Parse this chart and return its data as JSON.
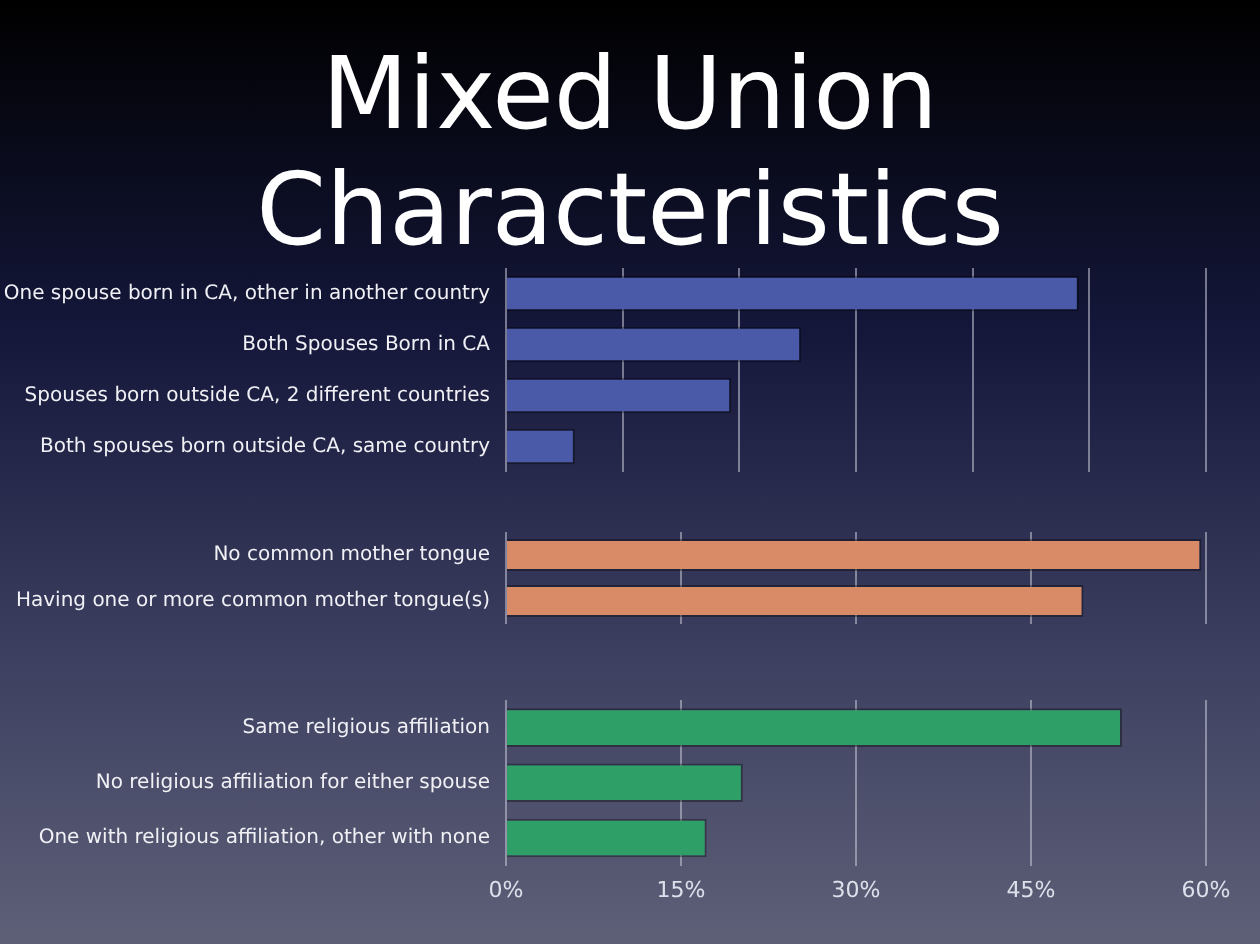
{
  "chart_data": [
    {
      "type": "bar",
      "title": "Mixed Union Characteristics",
      "orientation": "horizontal",
      "categories": [
        "One spouse born in CA, other in another country",
        "Both Spouses Born in CA",
        "Spouses born outside CA, 2 different countries",
        "Both spouses born outside CA, same country"
      ],
      "values": [
        49.1,
        25.3,
        19.3,
        5.9
      ],
      "color": "#4a5aa8",
      "xlim": [
        0,
        60
      ],
      "xticks": [
        0,
        10,
        20,
        30,
        40,
        50,
        60
      ],
      "grid": "x",
      "tick_labels": "y"
    },
    {
      "type": "bar",
      "orientation": "horizontal",
      "categories": [
        "No common mother tongue",
        "Having one or more common mother tongue(s)"
      ],
      "values": [
        59.6,
        49.5
      ],
      "color": "#d98a66",
      "xlim": [
        0,
        60
      ],
      "xticks": [
        0,
        15,
        30,
        45,
        60
      ],
      "grid": "x",
      "tick_labels": "y"
    },
    {
      "type": "bar",
      "orientation": "horizontal",
      "categories": [
        "Same religious affiliation",
        "No religious affiliation for either spouse",
        "One with religious affiliation, other with none"
      ],
      "values": [
        52.8,
        20.3,
        17.2
      ],
      "color": "#2f9f68",
      "xlim": [
        0,
        60
      ],
      "xticks": [
        {
          "value": 0,
          "label": "0%"
        },
        {
          "value": 15,
          "label": "15%"
        },
        {
          "value": 30,
          "label": "30%"
        },
        {
          "value": 45,
          "label": "45%"
        },
        {
          "value": 60,
          "label": "60%"
        }
      ],
      "grid": "x"
    }
  ]
}
